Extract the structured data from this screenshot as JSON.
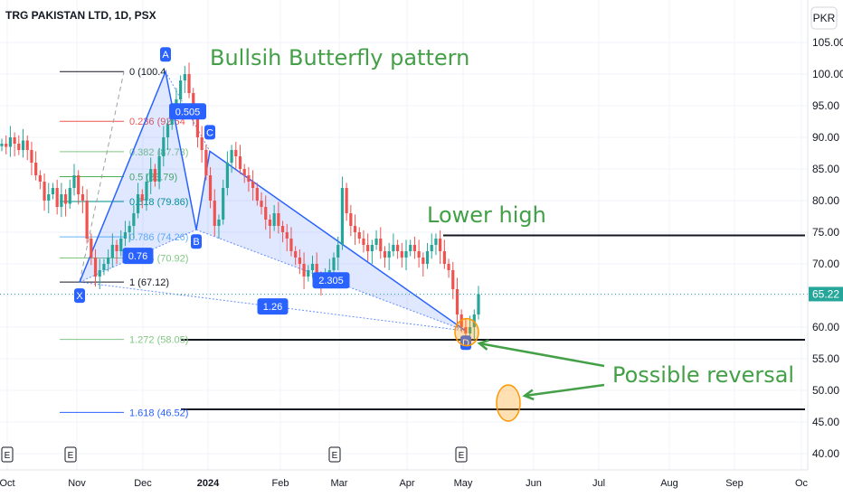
{
  "symbol": "TRG PAKISTAN LTD, 1D, PSX",
  "currency_button": "PKR",
  "last_price": {
    "value": 65.22,
    "label": "65.22",
    "color": "#26a69a"
  },
  "colors": {
    "up": "#26a69a",
    "down": "#ef5350",
    "pattern": "#2962ff",
    "annotation": "#43a047",
    "marker": "#ff9800"
  },
  "chart_data": {
    "type": "candlestick",
    "title": "TRG PAKISTAN LTD, 1D, PSX",
    "y_axis": {
      "min": 40,
      "max": 105,
      "ticks": [
        "105.00",
        "100.00",
        "95.00",
        "90.00",
        "85.00",
        "80.00",
        "75.00",
        "70.00",
        "65.00",
        "60.00",
        "55.00",
        "50.00",
        "45.00",
        "40.00"
      ],
      "position": "right"
    },
    "x_axis": {
      "ticks": [
        "Oct",
        "Nov",
        "Dec",
        "2024",
        "Feb",
        "Mar",
        "Apr",
        "May",
        "Jun",
        "Jul",
        "Aug",
        "Sep",
        "Oc"
      ]
    },
    "closes": [
      89,
      88.5,
      90,
      89,
      88,
      89.5,
      88,
      86,
      84,
      83,
      80,
      81,
      82,
      79,
      81,
      79.5,
      82,
      84,
      81,
      80,
      74,
      71,
      68,
      69,
      70,
      71,
      73,
      72,
      74,
      75,
      76,
      78,
      81,
      80,
      83,
      85,
      83,
      87,
      90,
      92,
      94,
      96,
      99,
      100,
      97,
      93,
      90,
      88,
      84,
      80,
      76,
      77,
      82,
      86,
      88,
      87,
      85,
      84,
      83,
      82,
      80,
      79,
      77,
      76,
      78,
      76,
      75,
      74,
      72,
      71,
      70,
      68,
      69,
      70,
      68,
      67,
      68,
      69,
      71,
      73,
      82,
      78,
      76,
      75,
      74,
      73,
      72,
      73,
      74,
      72,
      71,
      72,
      73,
      72,
      71,
      72,
      73,
      72,
      71,
      70,
      72,
      73,
      74,
      72,
      70,
      69,
      66,
      62,
      60,
      59,
      60,
      62,
      65.22
    ],
    "events": [
      "E",
      "E",
      "E",
      "E"
    ],
    "butterfly": {
      "name": "Bullsih Butterfly pattern",
      "points": [
        {
          "label": "X",
          "price": 67.12
        },
        {
          "label": "A",
          "price": 100.4
        },
        {
          "label": "B",
          "price": 75.4
        },
        {
          "label": "C",
          "price": 87.8
        },
        {
          "label": "D",
          "price": 59.4
        }
      ],
      "ratios": [
        "0.76",
        "0.505",
        "2.305",
        "1.26"
      ]
    },
    "fib_levels": [
      {
        "label": "0 (100.4",
        "price": 100.4,
        "color": "#131722"
      },
      {
        "label": "0.236 (92.54",
        "price": 92.54,
        "color": "#ef5350"
      },
      {
        "label": "0.382 (87.73)",
        "price": 87.73,
        "color": "#81c784"
      },
      {
        "label": "0.5 (83.79)",
        "price": 83.79,
        "color": "#4caf50"
      },
      {
        "label": "0.618 (79.86)",
        "price": 79.86,
        "color": "#009688"
      },
      {
        "label": "0.786 (74.26)",
        "price": 74.26,
        "color": "#64b5f6"
      },
      {
        "label": "0.886 (70.92)",
        "price": 70.92,
        "color": "#81c784"
      },
      {
        "label": "1 (67.12)",
        "price": 67.12,
        "color": "#131722"
      },
      {
        "label": "1.272 (58.05)",
        "price": 58.05,
        "color": "#81c784"
      },
      {
        "label": "1.618 (46.52)",
        "price": 46.52,
        "color": "#2962ff"
      }
    ],
    "horizontal_lines": [
      74.5,
      58.0,
      47.0
    ],
    "annotations": [
      "Bullsih Butterfly pattern",
      "Lower high",
      "Possible reversal"
    ]
  }
}
